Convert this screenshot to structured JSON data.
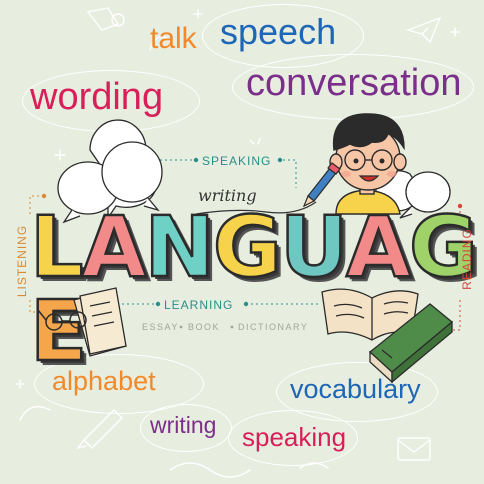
{
  "words": {
    "talk": "talk",
    "speech": "speech",
    "wording": "wording",
    "conversation": "conversation",
    "alphabet": "alphabet",
    "vocabulary": "vocabulary",
    "writing": "writing",
    "speaking": "speaking"
  },
  "labels": {
    "speaking": "SPEAKING",
    "learning": "LEARNING",
    "listening": "LISTENING",
    "reading": "READING",
    "writing_script": "writing"
  },
  "sub_words": [
    "ESSAY",
    "BOOK",
    "DICTIONARY"
  ],
  "title_letters": [
    "L",
    "A",
    "N",
    "G",
    "U",
    "A",
    "G",
    "E"
  ],
  "colors": {
    "background": "#e7eddf",
    "talk": "#f08a2c",
    "speech": "#1e66b6",
    "wording": "#d81f5a",
    "conversation": "#7b2e8a",
    "alphabet": "#f08a2c",
    "vocabulary": "#1e66b6",
    "writing": "#7b2e8a",
    "speaking": "#d81f5a",
    "title_letters": [
      "#f6d34a",
      "#f28a8a",
      "#6fd0c6",
      "#f6d34a",
      "#6fc7c2",
      "#f28a8a",
      "#9fd36a",
      "#f6a64a"
    ]
  },
  "icons": [
    "glasses-icon",
    "paper-stack-icon",
    "open-book-icon",
    "closed-book-icon",
    "pencil-icon",
    "boy-character",
    "speech-bubble-icon",
    "envelope-icon",
    "paper-plane-icon"
  ]
}
